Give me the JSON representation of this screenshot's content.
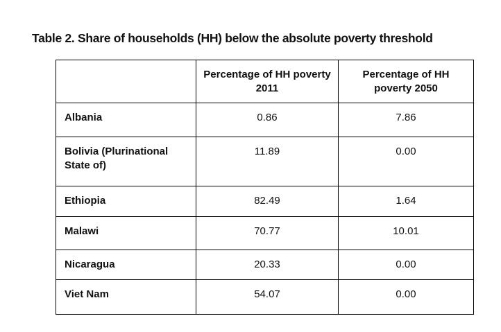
{
  "page": {
    "title": "Table 2. Share of households (HH) below the absolute poverty threshold"
  },
  "table": {
    "headers": {
      "country": "",
      "poverty_2011": "Percentage of HH poverty 2011",
      "poverty_2050": "Percentage of HH poverty 2050"
    },
    "rows": [
      {
        "country": "Albania",
        "poverty_2011": "0.86",
        "poverty_2050": "7.86"
      },
      {
        "country": "Bolivia (Plurinational State of)",
        "poverty_2011": "11.89",
        "poverty_2050": "0.00"
      },
      {
        "country": "Ethiopia",
        "poverty_2011": "82.49",
        "poverty_2050": "1.64"
      },
      {
        "country": "Malawi",
        "poverty_2011": "70.77",
        "poverty_2050": "10.01"
      },
      {
        "country": "Nicaragua",
        "poverty_2011": "20.33",
        "poverty_2050": "0.00"
      },
      {
        "country": "Viet Nam",
        "poverty_2011": "54.07",
        "poverty_2050": "0.00"
      }
    ]
  }
}
